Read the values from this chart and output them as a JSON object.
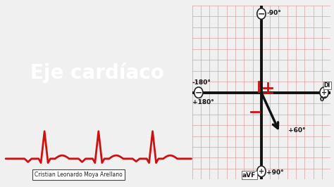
{
  "bg_color": "#f0f0f0",
  "left_panel_color": "#cc1111",
  "title_text": "Eje cardíaco",
  "title_color": "#ffffff",
  "author_text": "Cristian Leonardo Moya Arellano",
  "grid_bg": "#f5d0d0",
  "grid_line_color": "#d9a0a0",
  "axis_color": "#111111",
  "arrow_color": "#111111",
  "red_tick_color": "#cc1111",
  "ecg_color": "#cc1111",
  "label_minus90": "-90°",
  "label_plus90": "+90°",
  "label_0": "0°",
  "label_180": "-180°",
  "label_plus180": "+180°",
  "label_plus60": "+60°",
  "label_DI": "DI",
  "label_aVF": "aVF"
}
